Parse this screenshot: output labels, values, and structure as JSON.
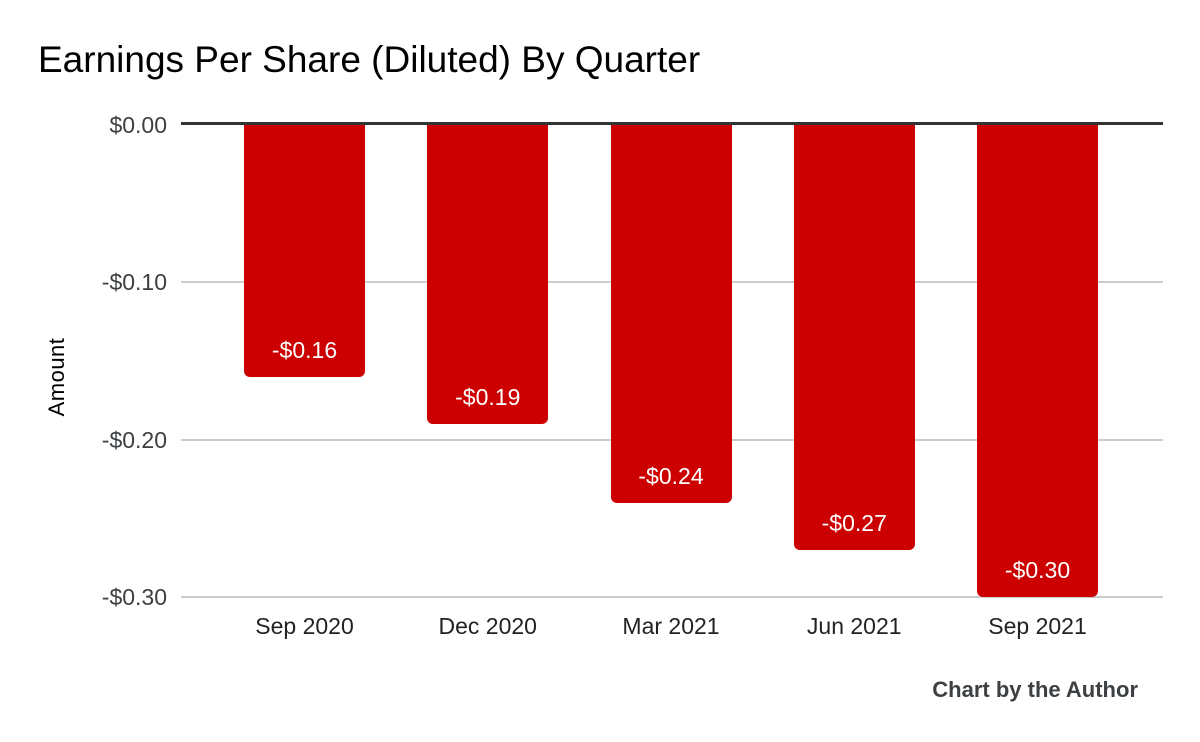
{
  "title": "Earnings Per Share (Diluted) By Quarter",
  "footer": {
    "credit": "Chart by the Author"
  },
  "chart_data": {
    "type": "bar",
    "title": "Earnings Per Share (Diluted) By Quarter",
    "categories": [
      "Sep 2020",
      "Dec 2020",
      "Mar 2021",
      "Jun 2021",
      "Sep 2021"
    ],
    "values": [
      -0.16,
      -0.19,
      -0.24,
      -0.27,
      -0.3
    ],
    "bar_labels": [
      "-$0.16",
      "-$0.19",
      "-$0.24",
      "-$0.27",
      "-$0.30"
    ],
    "xlabel": "",
    "ylabel": "Amount",
    "ylim": [
      -0.3,
      0
    ],
    "yticks": [
      {
        "value": 0,
        "label": "$0.00",
        "axis": true
      },
      {
        "value": -0.1,
        "label": "-$0.10",
        "axis": false
      },
      {
        "value": -0.2,
        "label": "-$0.20",
        "axis": false
      },
      {
        "value": -0.3,
        "label": "-$0.30",
        "axis": false
      }
    ],
    "grid": true,
    "legend_position": "none",
    "colors": {
      "bar": "#cc0000",
      "bar_label": "#ffffff",
      "axis_line": "#333333",
      "gridline": "#cccccc"
    }
  }
}
